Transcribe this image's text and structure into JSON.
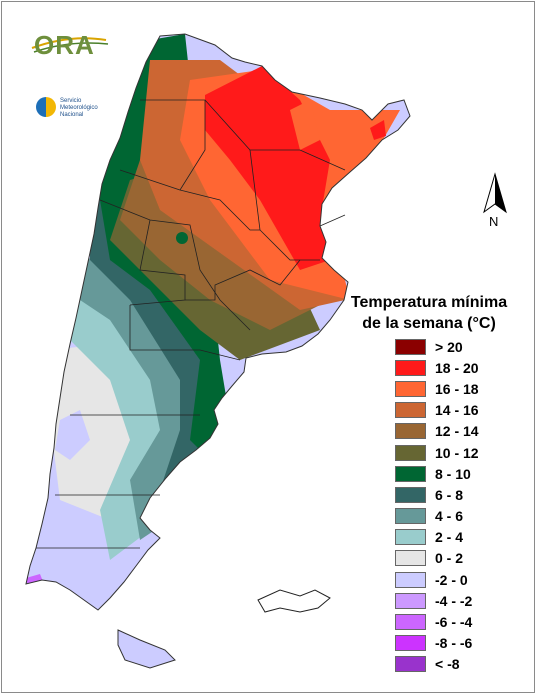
{
  "logos": {
    "ora_text": "ORA",
    "smn_line1": "Servicio",
    "smn_line2": "Meteorológico",
    "smn_line3": "Nacional"
  },
  "north_arrow": {
    "label": "N"
  },
  "legend": {
    "title_line1": "Temperatura mínima",
    "title_line2": "de la semana (°C)",
    "items": [
      {
        "label": "> 20",
        "color": "#8b0000"
      },
      {
        "label": "18 - 20",
        "color": "#ff1a1a"
      },
      {
        "label": "16 - 18",
        "color": "#ff6633"
      },
      {
        "label": "14 - 16",
        "color": "#cc6633"
      },
      {
        "label": "12 - 14",
        "color": "#996633"
      },
      {
        "label": "10 - 12",
        "color": "#666633"
      },
      {
        "label": "8 - 10",
        "color": "#006633"
      },
      {
        "label": "6 - 8",
        "color": "#336666"
      },
      {
        "label": "4 - 6",
        "color": "#669999"
      },
      {
        "label": "2 - 4",
        "color": "#99cccc"
      },
      {
        "label": "0 - 2",
        "color": "#e6e6e6"
      },
      {
        "label": "-2 - 0",
        "color": "#ccccff"
      },
      {
        "label": "-4 - -2",
        "color": "#cc99ff"
      },
      {
        "label": "-6 - -4",
        "color": "#cc66ff"
      },
      {
        "label": "-8 - -6",
        "color": "#cc33ff"
      },
      {
        "label": "< -8",
        "color": "#9933cc"
      }
    ]
  }
}
